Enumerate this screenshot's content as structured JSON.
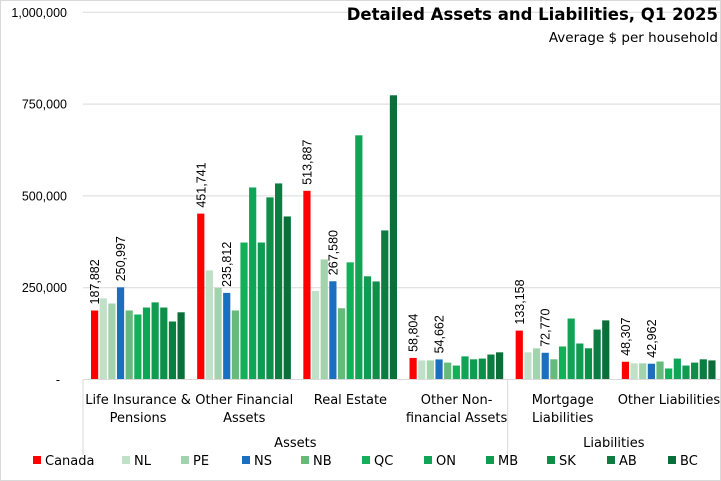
{
  "chart_data": {
    "type": "bar",
    "title": "Detailed Assets and Liabilities, Q1 2025",
    "subtitle": "Average $ per household",
    "xlabel": "",
    "ylabel": "",
    "ylim": [
      0,
      1000000
    ],
    "yticks": [
      0,
      250000,
      500000,
      750000,
      1000000
    ],
    "ytick_labels": [
      "-",
      "250,000",
      "500,000",
      "750,000",
      "1,000,000"
    ],
    "grid": true,
    "legend_position": "bottom",
    "categories": [
      {
        "label_lines": [
          "Life Insurance &",
          "Pensions"
        ],
        "group": "Assets"
      },
      {
        "label_lines": [
          "Other Financial",
          "Assets"
        ],
        "group": "Assets"
      },
      {
        "label_lines": [
          "Real Estate"
        ],
        "group": "Assets"
      },
      {
        "label_lines": [
          "Other Non-",
          "financial Assets"
        ],
        "group": "Assets"
      },
      {
        "label_lines": [
          "Mortgage",
          "Liabilities"
        ],
        "group": "Liabilities"
      },
      {
        "label_lines": [
          "Other Liabilities"
        ],
        "group": "Liabilities"
      }
    ],
    "groups": [
      {
        "label": "Assets",
        "span": 4
      },
      {
        "label": "Liabilities",
        "span": 2
      }
    ],
    "series": [
      {
        "name": "Canada",
        "color": "#ff0000",
        "values": [
          187882,
          451741,
          513887,
          58804,
          133158,
          48307
        ],
        "labels": [
          "187,882",
          "451,741",
          "513,887",
          "58,804",
          "133,158",
          "48,307"
        ]
      },
      {
        "name": "NL",
        "color": "#bfe1c7",
        "values": [
          221000,
          297000,
          241000,
          52000,
          74000,
          44000
        ]
      },
      {
        "name": "PE",
        "color": "#a3d3ad",
        "values": [
          207000,
          250000,
          327000,
          52000,
          85000,
          44000
        ]
      },
      {
        "name": "NS",
        "color": "#1c6fbe",
        "values": [
          250997,
          235812,
          267580,
          54662,
          72770,
          42962
        ],
        "labels": [
          "250,997",
          "235,812",
          "267,580",
          "54,662",
          "72,770",
          "42,962"
        ]
      },
      {
        "name": "NB",
        "color": "#66bb7a",
        "values": [
          188000,
          188000,
          194000,
          46000,
          55000,
          49000
        ]
      },
      {
        "name": "QC",
        "color": "#12b058",
        "values": [
          177000,
          373000,
          319000,
          38000,
          90000,
          30000
        ]
      },
      {
        "name": "ON",
        "color": "#10a556",
        "values": [
          196000,
          523000,
          665000,
          63000,
          166000,
          57000
        ]
      },
      {
        "name": "MB",
        "color": "#0f9b50",
        "values": [
          210000,
          373000,
          281000,
          55000,
          98000,
          38000
        ]
      },
      {
        "name": "SK",
        "color": "#0d8f4a",
        "values": [
          196000,
          496000,
          267000,
          57000,
          85000,
          46000
        ]
      },
      {
        "name": "AB",
        "color": "#0b7d40",
        "values": [
          158000,
          534000,
          406000,
          68000,
          136000,
          55000
        ]
      },
      {
        "name": "BC",
        "color": "#0a6f38",
        "values": [
          183000,
          444000,
          774000,
          74000,
          161000,
          52000
        ]
      }
    ]
  }
}
